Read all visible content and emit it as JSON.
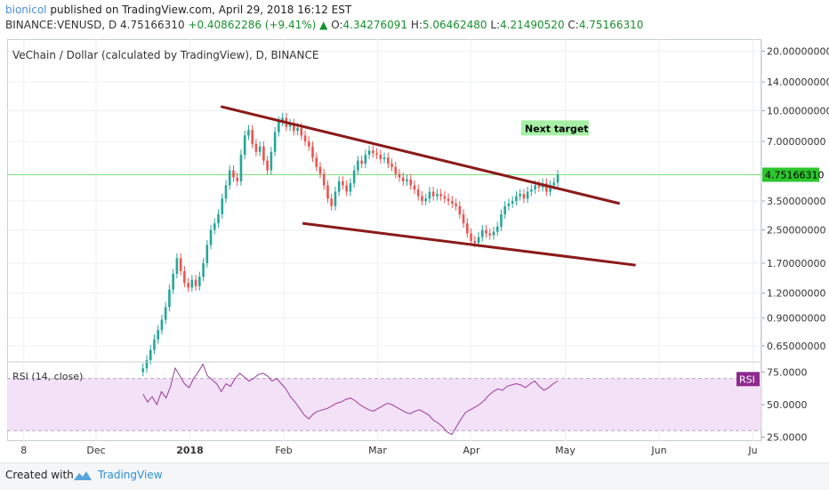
{
  "header": {
    "author": "bionicol",
    "published": "published on TradingView.com, April 29, 2018 16:12 EST",
    "symbol": "BINANCE:VENUSD, D",
    "price": "4.75166310",
    "change": "+0.40862286 (+9.41%)",
    "o_label": "O:",
    "o_value": "4.34276091",
    "h_label": "H:",
    "h_value": "5.06462480",
    "l_label": "L:",
    "l_value": "4.21490520",
    "c_label": "C:",
    "c_value": "4.75166310"
  },
  "colors": {
    "up": "#26a69a",
    "down": "#ef5350",
    "trendline": "#8b1a1a",
    "rsi_line": "#9c3a9a",
    "rsi_band": "#f3e1f7",
    "price_line": "#7ee07e",
    "price_badge": "#2dc52d"
  },
  "footer": {
    "created": "Created with",
    "brand": "TradingView"
  },
  "chart_data": [
    {
      "type": "candlestick",
      "title": "VeChain / Dollar (calculated by TradingView), D, BINANCE",
      "yscale": "log",
      "ylim": [
        0.55,
        23
      ],
      "y_ticks": [
        {
          "value": 20,
          "label": "20.00000000"
        },
        {
          "value": 14,
          "label": "14.00000000"
        },
        {
          "value": 10,
          "label": "10.00000000"
        },
        {
          "value": 7,
          "label": "7.00000000"
        },
        {
          "value": 3.5,
          "label": "3.50000000"
        },
        {
          "value": 2.5,
          "label": "2.50000000"
        },
        {
          "value": 1.7,
          "label": "1.70000000"
        },
        {
          "value": 1.2,
          "label": "1.20000000"
        },
        {
          "value": 0.9,
          "label": "0.90000000"
        },
        {
          "value": 0.65,
          "label": "0.65000000"
        }
      ],
      "x_ticks": [
        "8",
        "Dec",
        "2018",
        "Feb",
        "Mar",
        "Apr",
        "May",
        "Jun",
        "Ju"
      ],
      "x_tick_months": [
        -0.77,
        0,
        1,
        2,
        3,
        4,
        5,
        6,
        7
      ],
      "current_price": {
        "value": 4.7516631,
        "label": "4.75166310"
      },
      "annotation": {
        "text": "Next target",
        "month": 4.55,
        "price": 7.9
      },
      "trendlines": [
        {
          "name": "upper",
          "from": {
            "month": 1.33,
            "price": 10.5
          },
          "to": {
            "month": 5.58,
            "price": 3.4
          }
        },
        {
          "name": "lower",
          "from": {
            "month": 2.2,
            "price": 2.7
          },
          "to": {
            "month": 5.75,
            "price": 1.66
          }
        }
      ],
      "candles_months_start": 0.5,
      "candles_months_end": 4.92,
      "closes": [
        0.5,
        0.55,
        0.62,
        0.7,
        0.78,
        0.88,
        1.02,
        1.25,
        1.5,
        1.8,
        1.55,
        1.35,
        1.28,
        1.4,
        1.3,
        1.45,
        1.7,
        2.1,
        2.5,
        2.7,
        3.0,
        3.6,
        4.2,
        5.0,
        4.6,
        4.4,
        6.0,
        7.5,
        8.0,
        6.8,
        6.2,
        6.6,
        5.6,
        5.0,
        6.2,
        7.8,
        8.8,
        9.2,
        8.3,
        8.6,
        7.9,
        8.2,
        7.5,
        7.0,
        6.6,
        5.8,
        5.2,
        4.8,
        4.2,
        3.6,
        3.3,
        3.9,
        4.4,
        4.2,
        3.9,
        4.3,
        5.0,
        5.6,
        5.4,
        6.0,
        6.3,
        6.1,
        6.0,
        5.7,
        5.8,
        5.4,
        5.2,
        4.8,
        4.6,
        4.4,
        4.5,
        4.2,
        4.0,
        3.7,
        3.5,
        3.6,
        3.9,
        3.7,
        3.8,
        3.7,
        3.6,
        3.5,
        3.4,
        3.3,
        3.0,
        2.7,
        2.4,
        2.2,
        2.15,
        2.3,
        2.5,
        2.4,
        2.35,
        2.45,
        2.6,
        3.0,
        3.3,
        3.4,
        3.5,
        3.7,
        3.8,
        3.6,
        3.9,
        4.0,
        4.2,
        4.1,
        4.3,
        3.9,
        4.2,
        4.34,
        4.75
      ]
    },
    {
      "type": "line",
      "title": "RSI (14, close)",
      "badge": "RSI",
      "ylim": [
        22,
        82
      ],
      "y_ticks": [
        {
          "value": 75,
          "label": "75.0000"
        },
        {
          "value": 50,
          "label": "50.0000"
        },
        {
          "value": 25,
          "label": "25.0000"
        }
      ],
      "band": [
        30,
        70
      ],
      "x_months_start": 0.5,
      "x_months_end": 4.92,
      "values": [
        58,
        52,
        56,
        50,
        60,
        55,
        64,
        78,
        72,
        66,
        63,
        70,
        75,
        81,
        72,
        69,
        66,
        60,
        66,
        64,
        70,
        74,
        71,
        68,
        70,
        73,
        74,
        72,
        68,
        70,
        66,
        62,
        56,
        52,
        47,
        42,
        39,
        43,
        45,
        46,
        47,
        49,
        51,
        52,
        54,
        55,
        53,
        50,
        48,
        46,
        45,
        47,
        49,
        51,
        50,
        48,
        46,
        44,
        43,
        45,
        46,
        44,
        42,
        38,
        36,
        33,
        29,
        27,
        33,
        39,
        44,
        46,
        48,
        50,
        53,
        57,
        60,
        62,
        61,
        64,
        65,
        66,
        65,
        63,
        66,
        68,
        64,
        61,
        63,
        66,
        68
      ]
    }
  ]
}
